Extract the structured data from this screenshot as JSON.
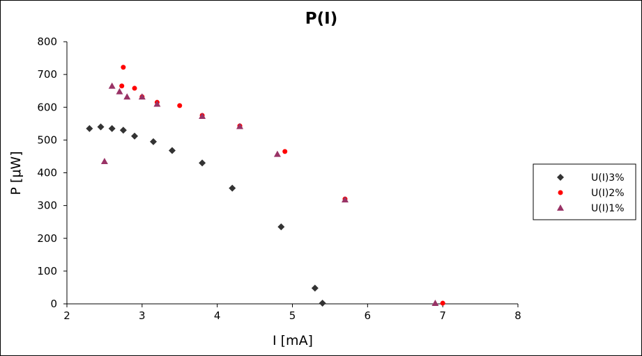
{
  "chart_data": {
    "type": "scatter",
    "title": "P(I)",
    "xlabel": "I [mA]",
    "ylabel": "P [μW]",
    "xlim": [
      2,
      8
    ],
    "ylim": [
      0,
      800
    ],
    "xticks": [
      "2",
      "3",
      "4",
      "5",
      "6",
      "7",
      "8"
    ],
    "yticks": [
      "0",
      "100",
      "200",
      "300",
      "400",
      "500",
      "600",
      "700",
      "800"
    ],
    "grid": false,
    "legend_position": "right",
    "series": [
      {
        "name": "U(I)3%",
        "marker": "diamond",
        "color": "#333333",
        "x": [
          2.3,
          2.45,
          2.6,
          2.75,
          2.9,
          3.15,
          3.4,
          3.8,
          4.2,
          4.85,
          5.3,
          5.4
        ],
        "y": [
          535,
          540,
          535,
          530,
          512,
          495,
          468,
          430,
          353,
          235,
          48,
          2
        ]
      },
      {
        "name": "U(I)2%",
        "marker": "circle",
        "color": "#ff0000",
        "x": [
          2.75,
          2.73,
          2.9,
          3.0,
          3.2,
          3.5,
          3.8,
          4.3,
          4.9,
          5.7,
          7.0
        ],
        "y": [
          722,
          665,
          658,
          632,
          615,
          605,
          575,
          543,
          465,
          320,
          2
        ]
      },
      {
        "name": "U(I)1%",
        "marker": "triangle",
        "color": "#993366",
        "x": [
          2.5,
          2.6,
          2.7,
          2.8,
          3.0,
          3.2,
          3.8,
          4.3,
          4.8,
          5.7,
          6.9
        ],
        "y": [
          435,
          665,
          648,
          632,
          632,
          610,
          573,
          542,
          457,
          318,
          2
        ]
      }
    ]
  }
}
